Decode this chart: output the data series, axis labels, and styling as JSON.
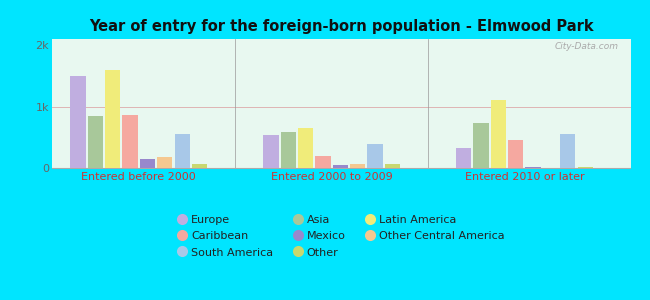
{
  "title": "Year of entry for the foreign-born population - Elmwood Park",
  "groups": [
    "Entered before 2000",
    "Entered 2000 to 2009",
    "Entered 2010 or later"
  ],
  "categories": [
    "Europe",
    "Asia",
    "Latin America",
    "Caribbean",
    "Mexico",
    "Other Central America",
    "South America",
    "Other"
  ],
  "colors": [
    "#c0aee0",
    "#a8c89a",
    "#f0ec7a",
    "#f5a8a0",
    "#9888cc",
    "#f5c890",
    "#a8c8e8",
    "#c8d870"
  ],
  "values": [
    [
      1500,
      850,
      1600,
      860,
      150,
      180,
      560,
      70
    ],
    [
      540,
      590,
      650,
      200,
      45,
      70,
      390,
      65
    ],
    [
      330,
      740,
      1100,
      450,
      20,
      5,
      555,
      20
    ]
  ],
  "ylim": [
    0,
    2100
  ],
  "bg_color": "#00e5ff",
  "plot_bg_color": "#e8f8f0",
  "watermark": "City-Data.com",
  "legend_order": [
    0,
    3,
    6,
    1,
    4,
    7,
    2,
    5
  ],
  "legend_labels": [
    "Europe",
    "Asia",
    "Latin America",
    "Caribbean",
    "Mexico",
    "Other Central America",
    "South America",
    "Other"
  ]
}
